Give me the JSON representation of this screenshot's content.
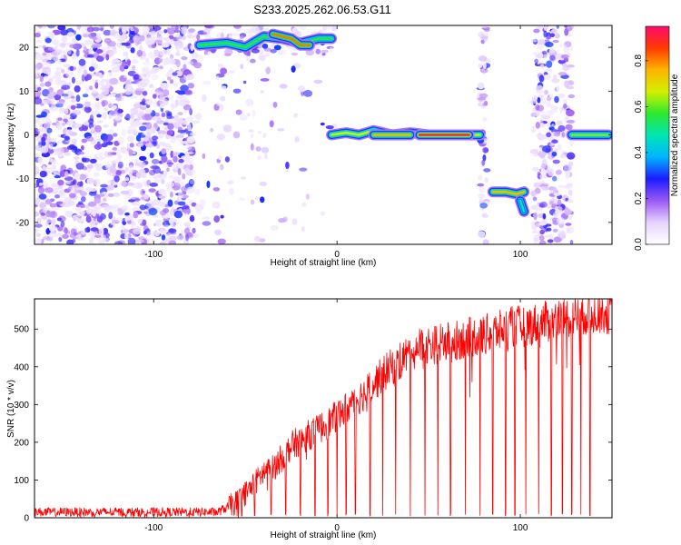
{
  "title": "S233.2025.262.06.53.G11",
  "chart_data": [
    {
      "type": "heatmap",
      "xlabel": "Height of straight line (km)",
      "ylabel": "Frequency (Hz)",
      "xlim": [
        -165,
        150
      ],
      "ylim": [
        -25,
        25
      ],
      "xticks": [
        -100,
        0,
        100
      ],
      "yticks": [
        -20,
        -10,
        0,
        10,
        20
      ],
      "colorbar": {
        "label": "Normalized spectral amplitude",
        "range": [
          0.0,
          0.95
        ],
        "ticks": [
          "0.0",
          "0.2",
          "0.4",
          "0.6",
          "0.8"
        ],
        "tick_values": [
          0.0,
          0.2,
          0.4,
          0.6,
          0.8
        ],
        "colors": [
          "#ffffff",
          "#e6d3ff",
          "#9b59f5",
          "#1c1cff",
          "#00b4ff",
          "#00e6b4",
          "#2ee82e",
          "#d2f000",
          "#ffb400",
          "#ff3a00",
          "#ff0a6e"
        ]
      },
      "noise_regions": [
        {
          "x": [
            -165,
            -78
          ],
          "y": [
            -25,
            25
          ],
          "density": 0.9
        },
        {
          "x": [
            -78,
            -40
          ],
          "y": [
            -25,
            25
          ],
          "density": 0.12
        },
        {
          "x": [
            -40,
            0
          ],
          "y": [
            -25,
            25
          ],
          "density": 0.05
        },
        {
          "x": [
            78,
            82
          ],
          "y": [
            -25,
            25
          ],
          "density": 0.8
        },
        {
          "x": [
            107,
            128
          ],
          "y": [
            -25,
            25
          ],
          "density": 0.85
        },
        {
          "x": [
            -80,
            0
          ],
          "y": [
            18,
            25
          ],
          "density": 0.55
        }
      ],
      "ridges": [
        {
          "x": [
            -75,
            -60,
            -50,
            -40,
            -30,
            -20,
            -10,
            -3
          ],
          "y": [
            20.5,
            21,
            20,
            22.5,
            22,
            21,
            22,
            22
          ],
          "amplitude": 0.6
        },
        {
          "x": [
            -35,
            -25,
            -20,
            -15
          ],
          "y": [
            23,
            22,
            20.5,
            20.5
          ],
          "amplitude": 0.85
        },
        {
          "x": [
            -3,
            5,
            12,
            20,
            30,
            40,
            50,
            60,
            70,
            78
          ],
          "y": [
            0,
            0.5,
            0,
            1,
            0,
            0.5,
            0,
            0,
            0,
            0
          ],
          "amplitude": 0.7
        },
        {
          "x": [
            20,
            30,
            40
          ],
          "y": [
            0,
            0,
            0
          ],
          "amplitude": 0.8
        },
        {
          "x": [
            45,
            55,
            65,
            72
          ],
          "y": [
            0,
            0,
            0,
            0
          ],
          "amplitude": 0.95
        },
        {
          "x": [
            85,
            92,
            98,
            102
          ],
          "y": [
            -13,
            -13,
            -13.5,
            -13
          ],
          "amplitude": 0.8
        },
        {
          "x": [
            100,
            102
          ],
          "y": [
            -15,
            -17.5
          ],
          "amplitude": 0.5
        },
        {
          "x": [
            128,
            135,
            142,
            148
          ],
          "y": [
            0,
            0,
            0,
            0
          ],
          "amplitude": 0.65
        }
      ]
    },
    {
      "type": "line",
      "xlabel": "Height of straight line (km)",
      "ylabel": "SNR (10 * v/v)",
      "xlim": [
        -165,
        150
      ],
      "ylim": [
        0,
        580
      ],
      "xticks": [
        -100,
        0,
        100
      ],
      "yticks": [
        0,
        100,
        200,
        300,
        400,
        500
      ],
      "series": [
        {
          "color": "#ff0000",
          "trend": {
            "x": [
              -165,
              -100,
              -65,
              -55,
              -45,
              -40,
              -35,
              -25,
              -15,
              -5,
              5,
              15,
              25,
              35,
              45,
              55,
              65,
              75,
              85,
              95,
              105,
              115,
              125,
              135,
              145,
              150
            ],
            "y": [
              15,
              15,
              15,
              40,
              90,
              120,
              130,
              190,
              220,
              250,
              290,
              330,
              380,
              420,
              455,
              460,
              470,
              480,
              490,
              505,
              510,
              520,
              530,
              540,
              545,
              540
            ]
          },
          "noise": 30,
          "dropouts": [
            -52,
            -45,
            -36,
            -28,
            -20,
            -12,
            -5,
            0,
            5,
            10,
            18,
            25,
            32,
            40,
            48,
            55,
            62,
            70,
            78,
            85,
            92,
            97,
            103,
            110,
            117,
            123,
            128,
            133,
            138
          ]
        }
      ]
    }
  ]
}
